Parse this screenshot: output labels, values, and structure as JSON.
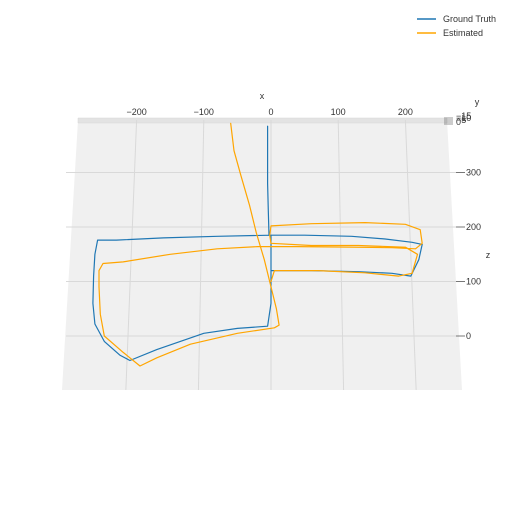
{
  "chart_data": {
    "type": "line",
    "title": "",
    "projection": "3d",
    "legend_position": "top-right",
    "grid": true,
    "axes": {
      "x": {
        "label": "x",
        "ticks": [
          -200,
          -100,
          0,
          100,
          200
        ],
        "tick_labels": [
          "−200",
          "−100",
          "0",
          "100",
          "200"
        ]
      },
      "y": {
        "label": "y",
        "ticks": [
          -15,
          -10,
          -5,
          0
        ],
        "tick_labels": [
          "−15",
          "−10",
          "−5",
          "0"
        ]
      },
      "z": {
        "label": "z",
        "ticks": [
          0,
          100,
          200,
          300
        ],
        "tick_labels": [
          "0",
          "100",
          "200",
          "300"
        ]
      }
    },
    "series": [
      {
        "name": "Ground Truth",
        "color": "#1f77b4",
        "points": [
          [
            -5,
            385
          ],
          [
            -5,
            330
          ],
          [
            -5,
            280
          ],
          [
            -4,
            230
          ],
          [
            -3,
            185
          ],
          [
            50,
            185
          ],
          [
            120,
            183
          ],
          [
            170,
            178
          ],
          [
            210,
            172
          ],
          [
            225,
            168
          ],
          [
            220,
            140
          ],
          [
            208,
            110
          ],
          [
            180,
            115
          ],
          [
            130,
            118
          ],
          [
            60,
            120
          ],
          [
            0,
            120
          ],
          [
            0,
            150
          ],
          [
            0,
            185
          ],
          [
            -80,
            183
          ],
          [
            -160,
            180
          ],
          [
            -230,
            176
          ],
          [
            -258,
            176
          ],
          [
            -262,
            150
          ],
          [
            -264,
            110
          ],
          [
            -265,
            60
          ],
          [
            -262,
            22
          ],
          [
            -248,
            -10
          ],
          [
            -225,
            -35
          ],
          [
            -210,
            -45
          ],
          [
            -170,
            -25
          ],
          [
            -100,
            5
          ],
          [
            -50,
            14
          ],
          [
            -5,
            18
          ],
          [
            0,
            60
          ],
          [
            0,
            100
          ],
          [
            0,
            120
          ]
        ]
      },
      {
        "name": "Estimated",
        "color": "#ffa500",
        "points": [
          [
            -60,
            390
          ],
          [
            -55,
            340
          ],
          [
            -45,
            295
          ],
          [
            -32,
            240
          ],
          [
            -22,
            190
          ],
          [
            -10,
            140
          ],
          [
            0,
            90
          ],
          [
            8,
            50
          ],
          [
            12,
            20
          ],
          [
            5,
            15
          ],
          [
            -50,
            5
          ],
          [
            -120,
            -15
          ],
          [
            -170,
            -40
          ],
          [
            -195,
            -55
          ],
          [
            -220,
            -30
          ],
          [
            -248,
            0
          ],
          [
            -254,
            40
          ],
          [
            -256,
            90
          ],
          [
            -256,
            120
          ],
          [
            -250,
            133
          ],
          [
            -220,
            136
          ],
          [
            -150,
            150
          ],
          [
            -80,
            160
          ],
          [
            -20,
            164
          ],
          [
            40,
            164
          ],
          [
            120,
            163
          ],
          [
            180,
            162
          ],
          [
            215,
            160
          ],
          [
            225,
            170
          ],
          [
            222,
            195
          ],
          [
            200,
            205
          ],
          [
            140,
            208
          ],
          [
            60,
            206
          ],
          [
            0,
            202
          ],
          [
            -2,
            185
          ],
          [
            0,
            170
          ],
          [
            60,
            166
          ],
          [
            130,
            166
          ],
          [
            200,
            163
          ],
          [
            218,
            150
          ],
          [
            210,
            115
          ],
          [
            190,
            110
          ],
          [
            140,
            116
          ],
          [
            70,
            120
          ],
          [
            5,
            120
          ],
          [
            0,
            100
          ]
        ]
      }
    ]
  }
}
